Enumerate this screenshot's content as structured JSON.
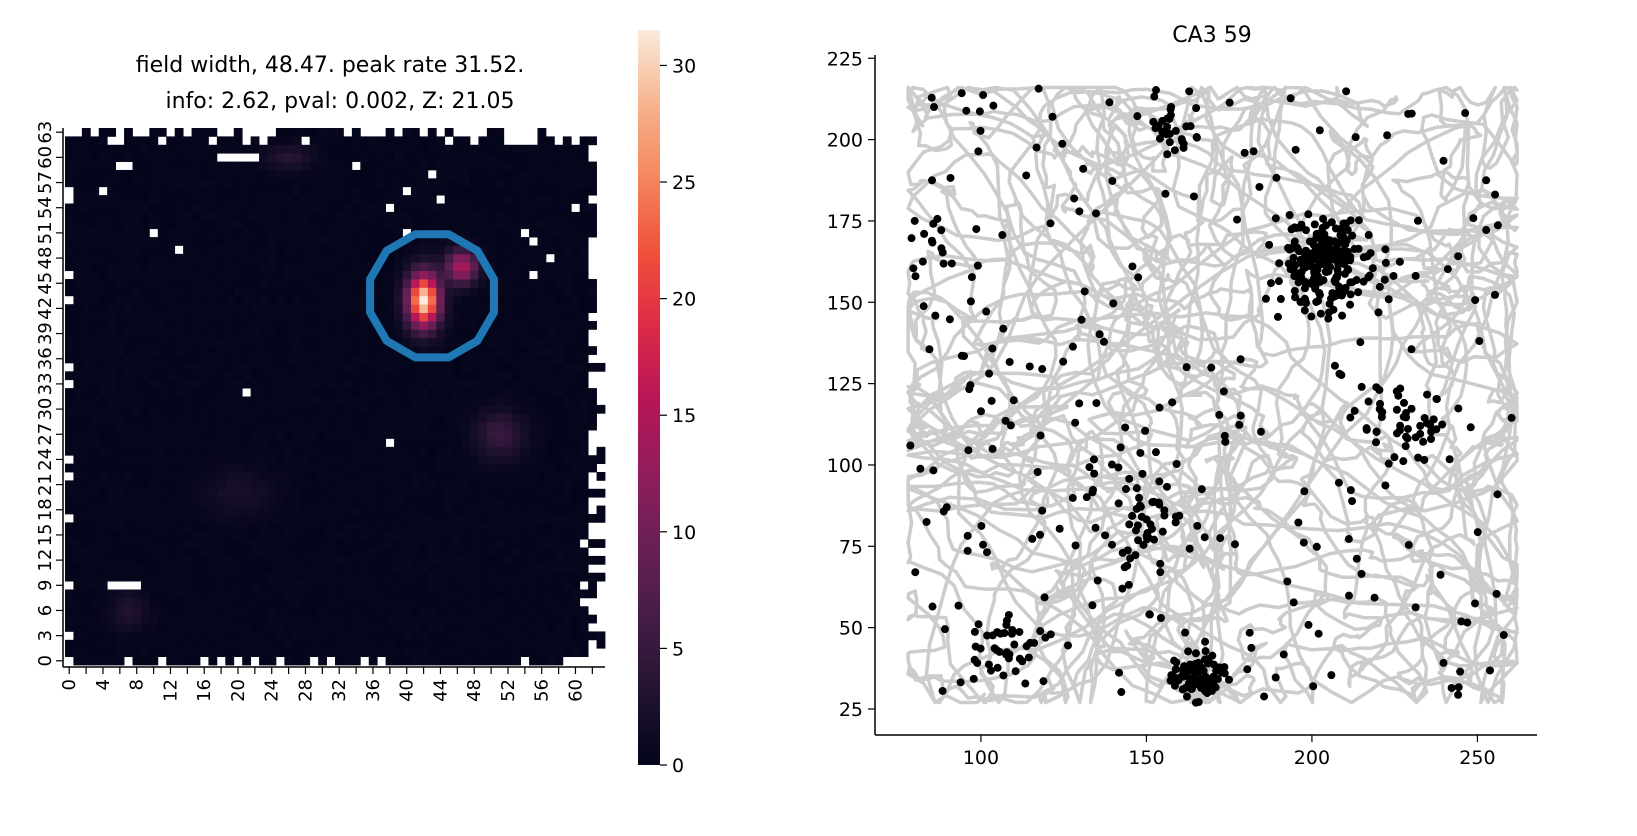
{
  "chart_data": [
    {
      "type": "heatmap",
      "title_line1": "field width, 48.47. peak rate 31.52.",
      "title_line2": "info: 2.62, pval: 0.002, Z: 21.05",
      "n_bins": 64,
      "x_tick_labels": [
        "0",
        "4",
        "8",
        "12",
        "16",
        "20",
        "24",
        "28",
        "32",
        "36",
        "40",
        "44",
        "48",
        "52",
        "56",
        "60"
      ],
      "y_tick_labels": [
        "0",
        "3",
        "6",
        "9",
        "12",
        "15",
        "18",
        "21",
        "24",
        "27",
        "30",
        "33",
        "36",
        "39",
        "42",
        "45",
        "48",
        "51",
        "54",
        "57",
        "60",
        "63"
      ],
      "value_range": [
        0,
        31.52
      ],
      "peak": {
        "col": 42,
        "row": 43,
        "value": 31.52
      },
      "fields": [
        {
          "col": 42,
          "row": 43,
          "amp": 31.5,
          "sx": 1.3,
          "sy": 2.2
        },
        {
          "col": 46.5,
          "row": 47,
          "amp": 15,
          "sx": 1.3,
          "sy": 1.4
        },
        {
          "col": 51,
          "row": 27,
          "amp": 5,
          "sx": 2,
          "sy": 2
        },
        {
          "col": 26,
          "row": 60,
          "amp": 3.5,
          "sx": 2,
          "sy": 1
        },
        {
          "col": 7,
          "row": 6,
          "amp": 3,
          "sx": 1.5,
          "sy": 1.5
        },
        {
          "col": 20,
          "row": 20,
          "amp": 2,
          "sx": 3,
          "sy": 2
        }
      ],
      "nan_cells": [
        [
          5,
          9
        ],
        [
          6,
          9
        ],
        [
          7,
          9
        ],
        [
          8,
          9
        ],
        [
          38,
          26
        ],
        [
          21,
          32
        ],
        [
          44,
          55
        ],
        [
          6,
          59
        ],
        [
          7,
          59
        ],
        [
          18,
          60
        ],
        [
          19,
          60
        ],
        [
          20,
          60
        ],
        [
          21,
          60
        ],
        [
          22,
          60
        ],
        [
          4,
          56
        ],
        [
          10,
          51
        ],
        [
          13,
          49
        ],
        [
          38,
          54
        ],
        [
          40,
          56
        ],
        [
          40,
          51
        ],
        [
          34,
          59
        ],
        [
          43,
          58
        ],
        [
          54,
          51
        ],
        [
          55,
          50
        ],
        [
          60,
          54
        ],
        [
          57,
          48
        ],
        [
          55,
          46
        ]
      ],
      "contour": {
        "center_col": 43,
        "center_row": 43.5,
        "radius": 7.6,
        "color": "#1f77b4"
      },
      "colorbar": {
        "ticks": [
          "0",
          "5",
          "10",
          "15",
          "20",
          "25",
          "30"
        ],
        "colormap": "rocket"
      }
    },
    {
      "type": "scatter",
      "title": "CA3 59",
      "xlim": [
        68,
        268
      ],
      "ylim": [
        17,
        226
      ],
      "x_ticks": [
        "100",
        "150",
        "200",
        "250"
      ],
      "y_ticks": [
        "25",
        "50",
        "75",
        "100",
        "125",
        "150",
        "175",
        "200",
        "225"
      ],
      "trajectory": {
        "color": "#cccccc",
        "x_range": [
          78,
          262
        ],
        "y_range": [
          27,
          216
        ]
      },
      "spike_color": "#000000",
      "spike_clusters": [
        {
          "x": 205,
          "y": 162,
          "sd": 7,
          "n": 220
        },
        {
          "x": 166,
          "y": 35,
          "sd": 4,
          "n": 80
        },
        {
          "x": 146,
          "y": 85,
          "sd": 9,
          "n": 60
        },
        {
          "x": 228,
          "y": 115,
          "sd": 7,
          "n": 45
        },
        {
          "x": 158,
          "y": 202,
          "sd": 4,
          "n": 25
        },
        {
          "x": 105,
          "y": 43,
          "sd": 6,
          "n": 35
        },
        {
          "x": 85,
          "y": 168,
          "sd": 4,
          "n": 15
        }
      ],
      "scattered_spikes": 230
    }
  ]
}
